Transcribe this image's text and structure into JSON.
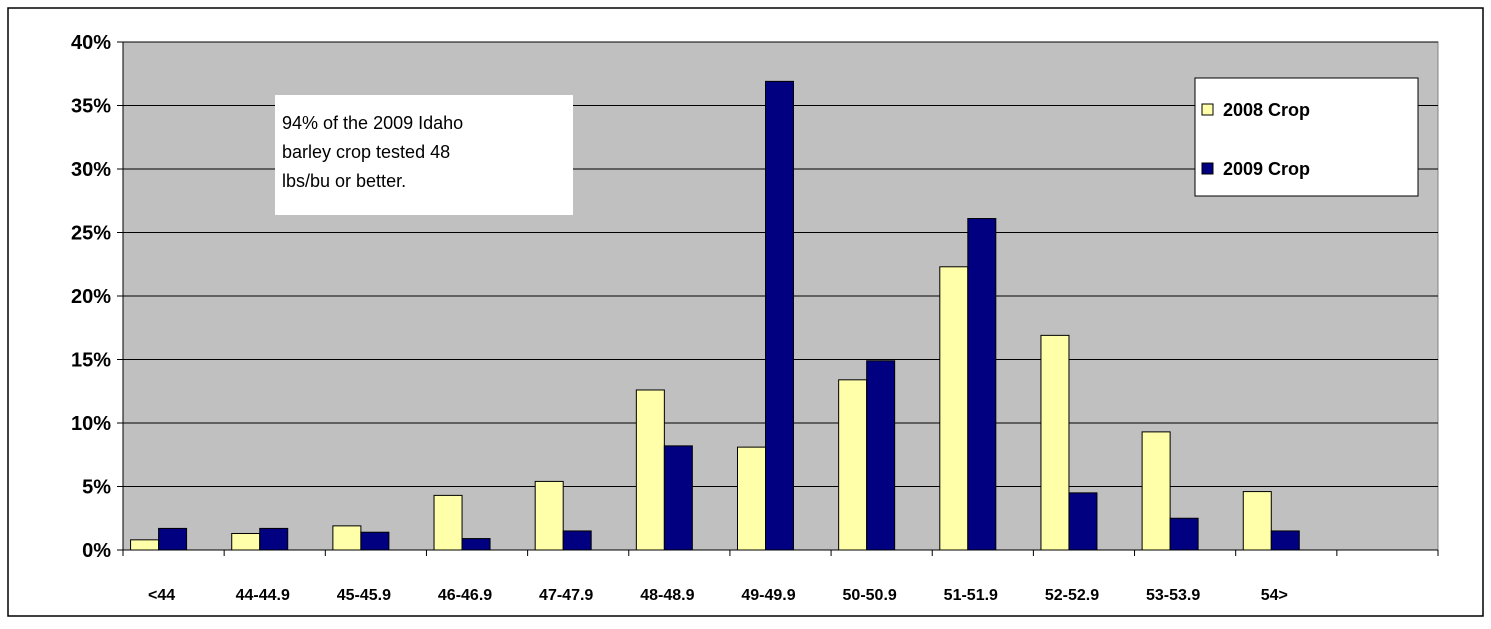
{
  "chart_data": {
    "type": "bar",
    "categories": [
      "<44",
      "44-44.9",
      "45-45.9",
      "46-46.9",
      "47-47.9",
      "48-48.9",
      "49-49.9",
      "50-50.9",
      "51-51.9",
      "52-52.9",
      "53-53.9",
      "54>",
      ""
    ],
    "series": [
      {
        "name": "2008 Crop",
        "color": "#FFFFAA",
        "values": [
          0.8,
          1.3,
          1.9,
          4.3,
          5.4,
          12.6,
          8.1,
          13.4,
          22.3,
          16.9,
          9.3,
          4.6,
          null
        ]
      },
      {
        "name": "2009 Crop",
        "color": "#000080",
        "values": [
          1.7,
          1.7,
          1.4,
          0.9,
          1.5,
          8.2,
          36.9,
          14.9,
          26.1,
          4.5,
          2.5,
          1.5,
          null
        ]
      }
    ],
    "yticks": [
      "0%",
      "5%",
      "10%",
      "15%",
      "20%",
      "25%",
      "30%",
      "35%",
      "40%"
    ],
    "ylim": [
      0,
      40
    ],
    "yunit": "%",
    "grid": true,
    "plot_background": "#C0C0C0",
    "legend_position": "top-right",
    "annotation": {
      "lines": [
        "94% of the 2009 Idaho",
        "barley crop tested 48",
        "lbs/bu or better."
      ]
    }
  }
}
